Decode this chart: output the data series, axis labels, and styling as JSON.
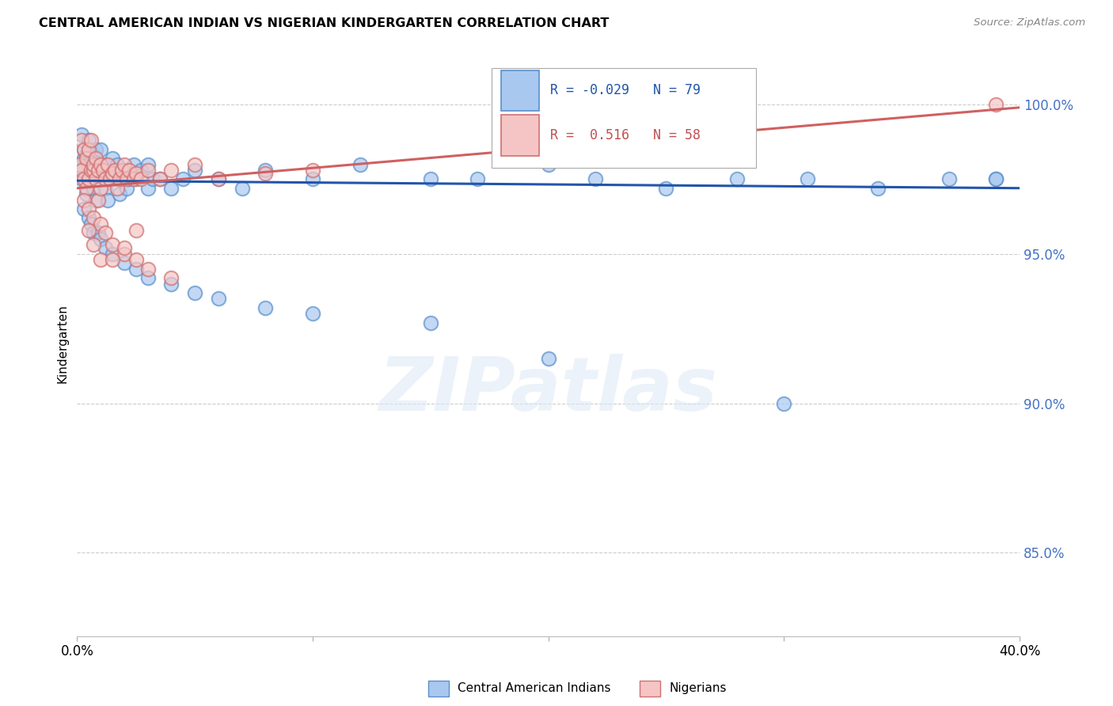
{
  "title": "CENTRAL AMERICAN INDIAN VS NIGERIAN KINDERGARTEN CORRELATION CHART",
  "source": "Source: ZipAtlas.com",
  "ylabel": "Kindergarten",
  "ytick_vals": [
    0.85,
    0.9,
    0.95,
    1.0
  ],
  "ytick_labels": [
    "85.0%",
    "90.0%",
    "95.0%",
    "100.0%"
  ],
  "xmin": 0.0,
  "xmax": 0.4,
  "ymin": 0.822,
  "ymax": 1.018,
  "blue_color_face": "#a8c8f0",
  "blue_color_edge": "#5b8fc9",
  "pink_color_face": "#f5c5c5",
  "pink_color_edge": "#d07070",
  "blue_line_color": "#2255aa",
  "pink_line_color": "#d06060",
  "watermark_text": "ZIPatlas",
  "watermark_color": "#ddeeff",
  "legend_R_blue": "R = -0.029",
  "legend_N_blue": "N = 79",
  "legend_R_pink": "R =  0.516",
  "legend_N_pink": "N = 58",
  "bottom_legend_1": "Central American Indians",
  "bottom_legend_2": "Nigerians",
  "blue_line_x0": 0.0,
  "blue_line_x1": 0.4,
  "blue_line_y0": 0.9745,
  "blue_line_y1": 0.972,
  "pink_line_x0": 0.0,
  "pink_line_x1": 0.4,
  "pink_line_y0": 0.972,
  "pink_line_y1": 0.999,
  "blue_x": [
    0.001,
    0.002,
    0.002,
    0.003,
    0.003,
    0.003,
    0.004,
    0.004,
    0.005,
    0.005,
    0.005,
    0.006,
    0.006,
    0.007,
    0.007,
    0.008,
    0.008,
    0.009,
    0.01,
    0.01,
    0.011,
    0.012,
    0.012,
    0.013,
    0.013,
    0.014,
    0.015,
    0.016,
    0.017,
    0.018,
    0.019,
    0.02,
    0.021,
    0.022,
    0.024,
    0.025,
    0.027,
    0.03,
    0.03,
    0.032,
    0.035,
    0.04,
    0.045,
    0.05,
    0.06,
    0.07,
    0.08,
    0.1,
    0.12,
    0.15,
    0.17,
    0.2,
    0.22,
    0.25,
    0.28,
    0.31,
    0.34,
    0.37,
    0.39,
    0.003,
    0.005,
    0.006,
    0.007,
    0.009,
    0.01,
    0.012,
    0.015,
    0.02,
    0.025,
    0.03,
    0.04,
    0.05,
    0.06,
    0.08,
    0.1,
    0.15,
    0.2,
    0.3,
    0.39
  ],
  "blue_y": [
    0.98,
    0.975,
    0.99,
    0.985,
    0.978,
    0.982,
    0.983,
    0.97,
    0.975,
    0.988,
    0.98,
    0.977,
    0.984,
    0.979,
    0.972,
    0.985,
    0.968,
    0.98,
    0.975,
    0.985,
    0.978,
    0.972,
    0.98,
    0.975,
    0.968,
    0.977,
    0.982,
    0.975,
    0.98,
    0.97,
    0.975,
    0.978,
    0.972,
    0.975,
    0.98,
    0.975,
    0.978,
    0.972,
    0.98,
    0.975,
    0.975,
    0.972,
    0.975,
    0.978,
    0.975,
    0.972,
    0.978,
    0.975,
    0.98,
    0.975,
    0.975,
    0.98,
    0.975,
    0.972,
    0.975,
    0.975,
    0.972,
    0.975,
    0.975,
    0.965,
    0.962,
    0.96,
    0.957,
    0.957,
    0.955,
    0.952,
    0.95,
    0.947,
    0.945,
    0.942,
    0.94,
    0.937,
    0.935,
    0.932,
    0.93,
    0.927,
    0.915,
    0.9,
    0.975
  ],
  "pink_x": [
    0.001,
    0.002,
    0.002,
    0.003,
    0.003,
    0.004,
    0.004,
    0.005,
    0.005,
    0.006,
    0.006,
    0.007,
    0.007,
    0.008,
    0.008,
    0.009,
    0.009,
    0.01,
    0.01,
    0.011,
    0.012,
    0.013,
    0.014,
    0.015,
    0.016,
    0.017,
    0.018,
    0.019,
    0.02,
    0.021,
    0.022,
    0.024,
    0.025,
    0.027,
    0.03,
    0.035,
    0.04,
    0.05,
    0.06,
    0.08,
    0.1,
    0.003,
    0.005,
    0.007,
    0.01,
    0.012,
    0.015,
    0.02,
    0.025,
    0.03,
    0.04,
    0.005,
    0.007,
    0.01,
    0.015,
    0.02,
    0.025,
    0.39
  ],
  "pink_y": [
    0.98,
    0.988,
    0.978,
    0.985,
    0.975,
    0.982,
    0.972,
    0.985,
    0.975,
    0.978,
    0.988,
    0.978,
    0.98,
    0.982,
    0.975,
    0.978,
    0.968,
    0.98,
    0.972,
    0.978,
    0.975,
    0.98,
    0.975,
    0.977,
    0.978,
    0.972,
    0.975,
    0.978,
    0.98,
    0.975,
    0.978,
    0.975,
    0.977,
    0.975,
    0.978,
    0.975,
    0.978,
    0.98,
    0.975,
    0.977,
    0.978,
    0.968,
    0.965,
    0.962,
    0.96,
    0.957,
    0.953,
    0.95,
    0.948,
    0.945,
    0.942,
    0.958,
    0.953,
    0.948,
    0.948,
    0.952,
    0.958,
    1.0
  ]
}
